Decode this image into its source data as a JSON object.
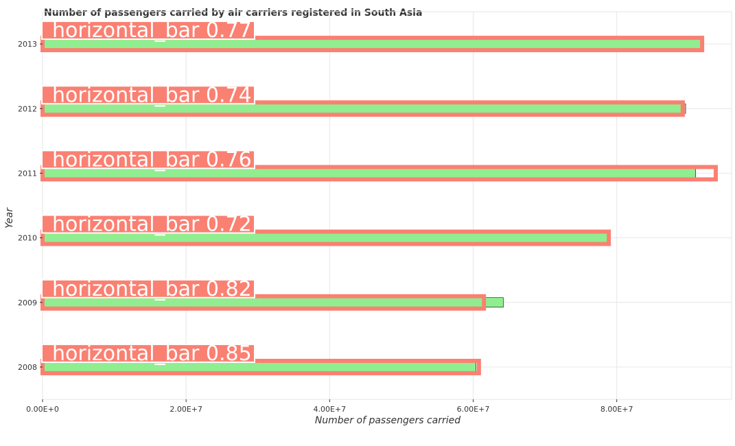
{
  "chart_data": {
    "type": "bar",
    "orientation": "horizontal",
    "title": "Number of passengers carried by air carriers registered in South Asia",
    "xlabel": "Number of passengers carried",
    "ylabel": "Year",
    "categories": [
      "2008",
      "2009",
      "2010",
      "2011",
      "2012",
      "2013"
    ],
    "values": [
      60400000,
      64200000,
      78900000,
      91000000,
      89600000,
      92000000
    ],
    "xlim": [
      0,
      96000000
    ],
    "xticks": [
      0,
      20000000,
      40000000,
      60000000,
      80000000
    ],
    "xtick_labels": [
      "0.00E+0",
      "2.00E+7",
      "4.00E+7",
      "6.00E+7",
      "8.00E+7"
    ],
    "grid": true,
    "bar_color": "#90ee90",
    "overlay": {
      "box_color": "#fa8072",
      "boxes": [
        {
          "category": "2008",
          "label": "horizontal_bar 0.85",
          "value_end": 60800000
        },
        {
          "category": "2009",
          "label": "horizontal_bar 0.82",
          "value_end": 61500000
        },
        {
          "category": "2010",
          "label": "horizontal_bar 0.72",
          "value_end": 78900000
        },
        {
          "category": "2011",
          "label": "horizontal_bar 0.76",
          "value_end": 93800000
        },
        {
          "category": "2012",
          "label": "horizontal_bar 0.74",
          "value_end": 89200000
        },
        {
          "category": "2013",
          "label": "horizontal_bar 0.77",
          "value_end": 91900000
        }
      ]
    }
  }
}
